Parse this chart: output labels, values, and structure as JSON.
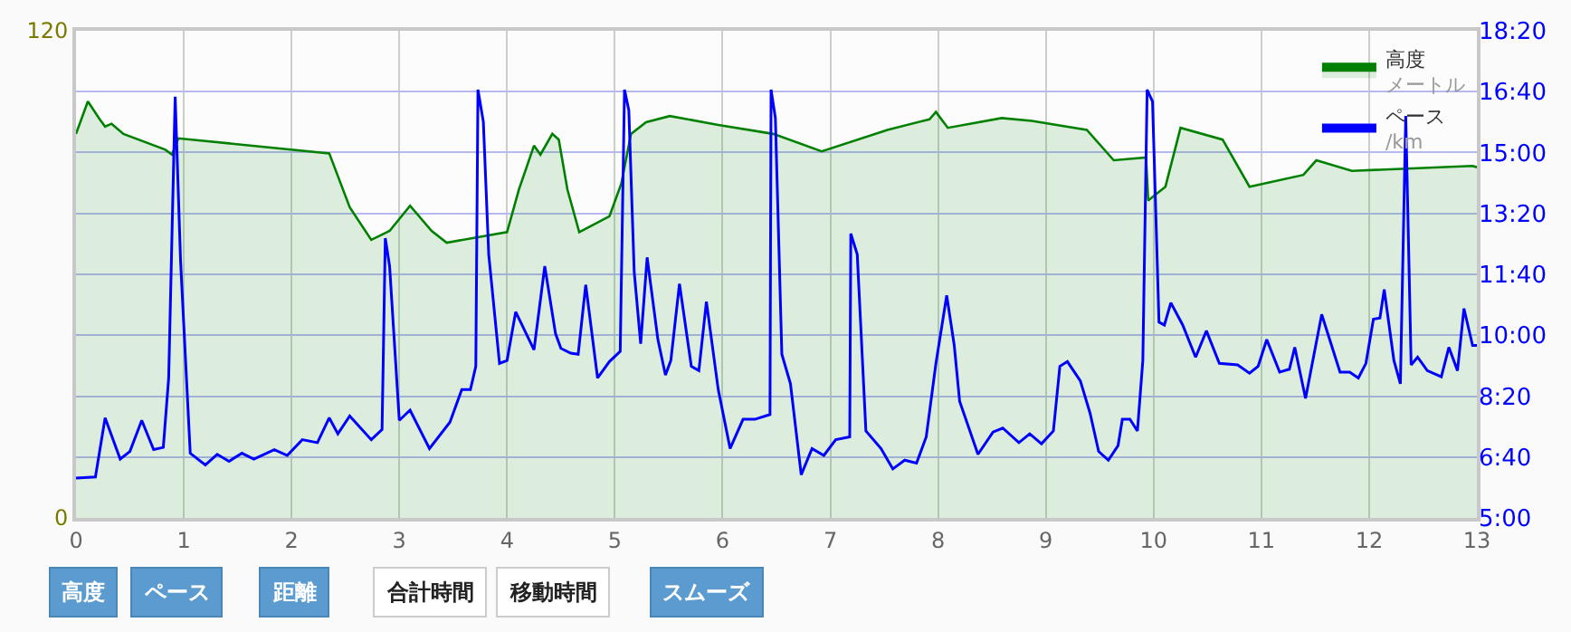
{
  "chart_data": {
    "type": "area",
    "series": [
      {
        "name": "高度メートル",
        "color": "#008000",
        "x": [
          0,
          0.11,
          0.22,
          0.27,
          0.33,
          0.44,
          0.83,
          0.89,
          0.95,
          2.35,
          2.54,
          2.74,
          2.91,
          3.1,
          3.3,
          3.44,
          4.0,
          4.11,
          4.25,
          4.31,
          4.42,
          4.48,
          4.56,
          4.67,
          4.95,
          5.06,
          5.15,
          5.29,
          5.51,
          5.96,
          6.47,
          6.92,
          7.53,
          7.92,
          7.98,
          8.09,
          8.59,
          8.87,
          9.38,
          9.63,
          9.93,
          9.95,
          10.11,
          10.25,
          10.64,
          10.89,
          11.39,
          11.51,
          11.84,
          12.96,
          13.0
        ],
        "values": [
          94.6,
          102.6,
          98.2,
          96.4,
          97.1,
          94.6,
          90.7,
          89.5,
          93.5,
          89.8,
          76.5,
          68.5,
          70.7,
          76.9,
          70.7,
          67.8,
          70.4,
          80.9,
          91.7,
          89.5,
          94.6,
          93.2,
          80.9,
          70.4,
          74.3,
          82.3,
          94.6,
          97.5,
          99.0,
          96.8,
          94.6,
          90.3,
          95.6,
          98.2,
          100.0,
          96.1,
          98.5,
          97.8,
          95.6,
          88.1,
          88.8,
          78.2,
          81.6,
          96.1,
          93.2,
          81.6,
          84.5,
          88.1,
          85.5,
          86.7,
          86.4
        ]
      },
      {
        "name": "ペース/km",
        "color": "#0000ff",
        "type": "line",
        "axis": "y2",
        "x": [
          0,
          0.18,
          0.27,
          0.41,
          0.5,
          0.61,
          0.72,
          0.81,
          0.86,
          0.92,
          0.97,
          1.06,
          1.2,
          1.31,
          1.42,
          1.54,
          1.65,
          1.84,
          1.96,
          2.1,
          2.24,
          2.35,
          2.43,
          2.54,
          2.74,
          2.84,
          2.87,
          2.91,
          3.0,
          3.1,
          3.28,
          3.47,
          3.58,
          3.66,
          3.71,
          3.73,
          3.78,
          3.83,
          3.93,
          4.0,
          4.08,
          4.25,
          4.35,
          4.45,
          4.5,
          4.59,
          4.66,
          4.73,
          4.84,
          4.95,
          5.05,
          5.09,
          5.13,
          5.18,
          5.24,
          5.3,
          5.4,
          5.47,
          5.52,
          5.6,
          5.71,
          5.78,
          5.85,
          5.96,
          6.07,
          6.19,
          6.3,
          6.44,
          6.45,
          6.49,
          6.55,
          6.63,
          6.73,
          6.83,
          6.94,
          7.05,
          7.18,
          7.19,
          7.25,
          7.33,
          7.47,
          7.58,
          7.69,
          7.8,
          7.89,
          7.98,
          8.08,
          8.15,
          8.2,
          8.37,
          8.51,
          8.6,
          8.75,
          8.85,
          8.96,
          9.07,
          9.13,
          9.2,
          9.32,
          9.41,
          9.49,
          9.58,
          9.67,
          9.71,
          9.78,
          9.85,
          9.9,
          9.94,
          9.99,
          10.05,
          10.1,
          10.16,
          10.27,
          10.39,
          10.49,
          10.61,
          10.78,
          10.89,
          10.97,
          11.05,
          11.17,
          11.26,
          11.31,
          11.41,
          11.56,
          11.73,
          11.82,
          11.9,
          11.97,
          12.04,
          12.1,
          12.14,
          12.23,
          12.29,
          12.34,
          12.39,
          12.45,
          12.54,
          12.67,
          12.74,
          12.82,
          12.88,
          12.96,
          13.0
        ],
        "values": [
          6.09,
          6.12,
          7.74,
          6.61,
          6.82,
          7.67,
          6.87,
          6.93,
          8.83,
          16.53,
          12.05,
          6.77,
          6.45,
          6.74,
          6.55,
          6.77,
          6.61,
          6.87,
          6.71,
          7.14,
          7.06,
          7.74,
          7.3,
          7.79,
          7.14,
          7.42,
          12.66,
          11.89,
          7.67,
          7.95,
          6.9,
          7.62,
          8.51,
          8.51,
          9.15,
          16.72,
          15.84,
          12.21,
          9.23,
          9.31,
          10.64,
          9.6,
          11.89,
          10.04,
          9.64,
          9.51,
          9.48,
          11.38,
          8.83,
          9.28,
          9.56,
          16.72,
          16.16,
          11.73,
          9.77,
          12.13,
          9.88,
          8.91,
          9.31,
          11.41,
          9.15,
          9.03,
          10.92,
          8.51,
          6.9,
          7.7,
          7.7,
          7.83,
          16.72,
          15.95,
          9.48,
          8.67,
          6.18,
          6.9,
          6.71,
          7.14,
          7.22,
          12.78,
          12.21,
          7.38,
          6.9,
          6.34,
          6.58,
          6.5,
          7.22,
          9.23,
          11.09,
          9.72,
          8.19,
          6.74,
          7.35,
          7.46,
          7.06,
          7.3,
          7.03,
          7.38,
          9.15,
          9.28,
          8.75,
          7.87,
          6.82,
          6.58,
          6.98,
          7.7,
          7.7,
          7.38,
          9.31,
          16.72,
          16.4,
          10.36,
          10.28,
          10.89,
          10.28,
          9.4,
          10.12,
          9.23,
          9.19,
          8.96,
          9.15,
          9.88,
          8.99,
          9.07,
          9.67,
          8.27,
          10.57,
          8.99,
          8.99,
          8.83,
          9.23,
          10.44,
          10.47,
          11.25,
          9.31,
          8.67,
          16.0,
          9.19,
          9.4,
          9.03,
          8.86,
          9.67,
          9.03,
          10.73,
          9.72,
          9.72
        ]
      }
    ],
    "xlim": [
      0,
      13
    ],
    "xticks": [
      0,
      1,
      2,
      3,
      4,
      5,
      6,
      7,
      8,
      9,
      10,
      11,
      12,
      13
    ],
    "ylim": [
      0,
      120
    ],
    "yticks": [
      0,
      120
    ],
    "y2lim": [
      5,
      18.333
    ],
    "y2ticks": [
      {
        "value": 5,
        "label": "5:00"
      },
      {
        "value": 6.667,
        "label": "6:40"
      },
      {
        "value": 8.333,
        "label": "8:20"
      },
      {
        "value": 10,
        "label": "10:00"
      },
      {
        "value": 11.667,
        "label": "11:40"
      },
      {
        "value": 13.333,
        "label": "13:20"
      },
      {
        "value": 15,
        "label": "15:00"
      },
      {
        "value": 16.667,
        "label": "16:40"
      },
      {
        "value": 18.333,
        "label": "18:20"
      }
    ],
    "grid": true,
    "legend": "top right",
    "marker": "none",
    "line_style": "solid",
    "annotations": [
      "高度",
      "ペース",
      "距離",
      "合計時間",
      "移動時間",
      "スムーズ"
    ]
  }
}
